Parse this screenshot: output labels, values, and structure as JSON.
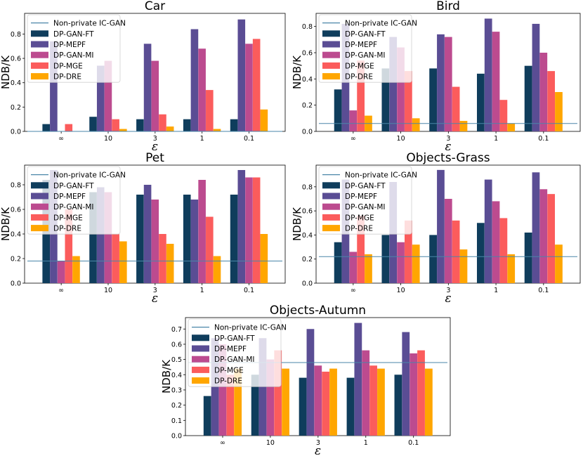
{
  "colors": {
    "Non-private IC-GAN": "#4a86a8",
    "DP-GAN-FT": "#0f3d5c",
    "DP-MEPF": "#5a4d94",
    "DP-GAN-MI": "#bc4b8f",
    "DP-MGE": "#fb5c5c",
    "DP-DRE": "#ffa600"
  },
  "chart_data": [
    {
      "type": "bar",
      "title": "Car",
      "xlabel": "ε",
      "ylabel": "NDB/K",
      "categories": [
        "∞",
        "10",
        "3",
        "1",
        "0.1"
      ],
      "ylim": [
        0,
        0.97
      ],
      "yticks": [
        "0.0",
        "0.2",
        "0.4",
        "0.6",
        "0.8"
      ],
      "baseline": {
        "name": "Non-private IC-GAN",
        "value": 0.0
      },
      "series": [
        {
          "name": "DP-GAN-FT",
          "values": [
            0.06,
            0.12,
            0.1,
            0.1,
            0.1
          ]
        },
        {
          "name": "DP-MEPF",
          "values": [
            0.74,
            0.54,
            0.72,
            0.84,
            0.92
          ]
        },
        {
          "name": "DP-GAN-MI",
          "values": [
            0.0,
            0.58,
            0.58,
            0.68,
            0.72
          ]
        },
        {
          "name": "DP-MGE",
          "values": [
            0.06,
            0.1,
            0.14,
            0.34,
            0.76
          ]
        },
        {
          "name": "DP-DRE",
          "values": [
            0.0,
            0.02,
            0.04,
            0.02,
            0.18
          ]
        }
      ]
    },
    {
      "type": "bar",
      "title": "Bird",
      "xlabel": "ε",
      "ylabel": "NDB/K",
      "categories": [
        "∞",
        "10",
        "3",
        "1",
        "0.1"
      ],
      "ylim": [
        0,
        0.9
      ],
      "yticks": [
        "0.0",
        "0.2",
        "0.4",
        "0.6",
        "0.8"
      ],
      "baseline": {
        "name": "Non-private IC-GAN",
        "value": 0.06
      },
      "series": [
        {
          "name": "DP-GAN-FT",
          "values": [
            0.32,
            0.48,
            0.48,
            0.44,
            0.5
          ]
        },
        {
          "name": "DP-MEPF",
          "values": [
            0.82,
            0.72,
            0.74,
            0.86,
            0.82
          ]
        },
        {
          "name": "DP-GAN-MI",
          "values": [
            0.16,
            0.64,
            0.72,
            0.76,
            0.6
          ]
        },
        {
          "name": "DP-MGE",
          "values": [
            0.54,
            0.46,
            0.34,
            0.24,
            0.46
          ]
        },
        {
          "name": "DP-DRE",
          "values": [
            0.12,
            0.1,
            0.08,
            0.06,
            0.3
          ]
        }
      ]
    },
    {
      "type": "bar",
      "title": "Pet",
      "xlabel": "ε",
      "ylabel": "NDB/K",
      "categories": [
        "∞",
        "10",
        "3",
        "1",
        "0.1"
      ],
      "ylim": [
        0,
        0.96
      ],
      "yticks": [
        "0.0",
        "0.2",
        "0.4",
        "0.6",
        "0.8"
      ],
      "baseline": {
        "name": "Non-private IC-GAN",
        "value": 0.18
      },
      "series": [
        {
          "name": "DP-GAN-FT",
          "values": [
            0.84,
            0.74,
            0.72,
            0.72,
            0.72
          ]
        },
        {
          "name": "DP-MEPF",
          "values": [
            0.92,
            0.78,
            0.8,
            0.68,
            0.92
          ]
        },
        {
          "name": "DP-GAN-MI",
          "values": [
            0.18,
            0.74,
            0.68,
            0.84,
            0.86
          ]
        },
        {
          "name": "DP-MGE",
          "values": [
            0.6,
            0.4,
            0.4,
            0.54,
            0.86
          ]
        },
        {
          "name": "DP-DRE",
          "values": [
            0.22,
            0.34,
            0.32,
            0.22,
            0.4
          ]
        }
      ]
    },
    {
      "type": "bar",
      "title": "Objects-Grass",
      "xlabel": "ε",
      "ylabel": "NDB/K",
      "categories": [
        "∞",
        "10",
        "3",
        "1",
        "0.1"
      ],
      "ylim": [
        0,
        0.98
      ],
      "yticks": [
        "0.0",
        "0.2",
        "0.4",
        "0.6",
        "0.8"
      ],
      "baseline": {
        "name": "Non-private IC-GAN",
        "value": 0.22
      },
      "series": [
        {
          "name": "DP-GAN-FT",
          "values": [
            0.34,
            0.4,
            0.4,
            0.5,
            0.42
          ]
        },
        {
          "name": "DP-MEPF",
          "values": [
            0.86,
            0.84,
            0.94,
            0.86,
            0.92
          ]
        },
        {
          "name": "DP-GAN-MI",
          "values": [
            0.26,
            0.34,
            0.7,
            0.68,
            0.78
          ]
        },
        {
          "name": "DP-MGE",
          "values": [
            0.56,
            0.52,
            0.52,
            0.54,
            0.74
          ]
        },
        {
          "name": "DP-DRE",
          "values": [
            0.24,
            0.32,
            0.28,
            0.24,
            0.32
          ]
        }
      ]
    },
    {
      "type": "bar",
      "title": "Objects-Autumn",
      "xlabel": "ε",
      "ylabel": "NDB/K",
      "categories": [
        "∞",
        "10",
        "3",
        "1",
        "0.1"
      ],
      "ylim": [
        0,
        0.775
      ],
      "yticks": [
        "0.0",
        "0.1",
        "0.2",
        "0.3",
        "0.4",
        "0.5",
        "0.6",
        "0.7"
      ],
      "baseline": {
        "name": "Non-private IC-GAN",
        "value": 0.48
      },
      "series": [
        {
          "name": "DP-GAN-FT",
          "values": [
            0.26,
            0.4,
            0.38,
            0.38,
            0.4
          ]
        },
        {
          "name": "DP-MEPF",
          "values": [
            0.64,
            0.64,
            0.7,
            0.74,
            0.68
          ]
        },
        {
          "name": "DP-GAN-MI",
          "values": [
            0.6,
            0.5,
            0.46,
            0.56,
            0.54
          ]
        },
        {
          "name": "DP-MGE",
          "values": [
            0.4,
            0.56,
            0.42,
            0.46,
            0.56
          ]
        },
        {
          "name": "DP-DRE",
          "values": [
            0.44,
            0.44,
            0.44,
            0.44,
            0.44
          ]
        }
      ]
    }
  ]
}
